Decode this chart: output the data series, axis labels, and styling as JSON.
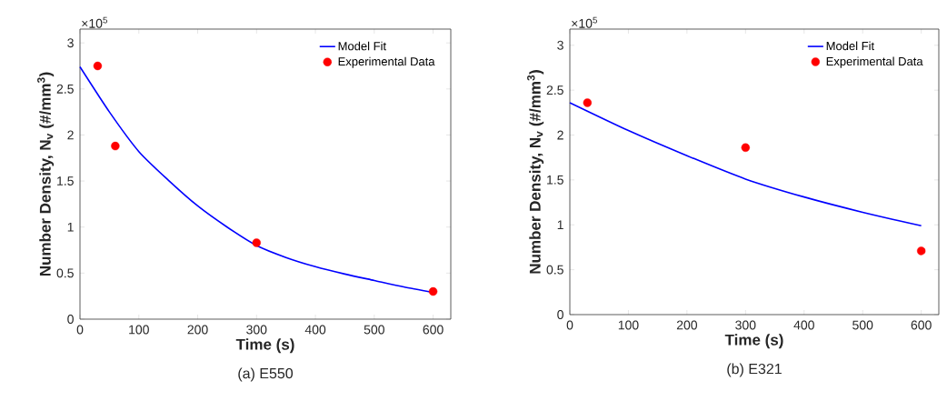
{
  "chart_data": [
    {
      "type": "line",
      "title": "(a) E550",
      "xlabel": "Time (s)",
      "ylabel": "Number Density, N$_{v}$ (#/mm$^{3}$)",
      "annotations": [
        "×10$^{5}$"
      ],
      "xlim": [
        0,
        630
      ],
      "ylim": [
        0,
        3.15
      ],
      "xticks": [
        0,
        100,
        200,
        300,
        400,
        500,
        600
      ],
      "yticks": [
        0,
        0.5,
        1,
        1.5,
        2,
        2.5,
        3
      ],
      "legend": "top right",
      "grid": false,
      "series": [
        {
          "name": "Model Fit",
          "color": "#0000ff",
          "line_style": "solid",
          "marker": "none",
          "x": [
            0,
            50,
            100,
            150,
            200,
            250,
            300,
            350,
            400,
            450,
            500,
            550,
            600
          ],
          "values": [
            2.74,
            2.25,
            1.82,
            1.51,
            1.23,
            1.0,
            0.8,
            0.67,
            0.57,
            0.49,
            0.42,
            0.35,
            0.29
          ]
        },
        {
          "name": "Experimental Data",
          "type": "scatter",
          "color": "#ff0000",
          "marker": "circle",
          "x": [
            30,
            60,
            300,
            600
          ],
          "values": [
            2.75,
            1.88,
            0.83,
            0.3
          ]
        }
      ]
    },
    {
      "type": "line",
      "title": "(b) E321",
      "xlabel": "Time (s)",
      "ylabel": "Number Density, N$_{v}$ (#/mm$^{3}$)",
      "annotations": [
        "×10$^{5}$"
      ],
      "xlim": [
        0,
        630
      ],
      "ylim": [
        0,
        3.18
      ],
      "xticks": [
        0,
        100,
        200,
        300,
        400,
        500,
        600
      ],
      "yticks": [
        0,
        0.5,
        1,
        1.5,
        2,
        2.5,
        3
      ],
      "legend": "top right",
      "grid": false,
      "series": [
        {
          "name": "Model Fit",
          "color": "#0000ff",
          "line_style": "solid",
          "marker": "none",
          "x": [
            0,
            100,
            200,
            300,
            400,
            500,
            600
          ],
          "values": [
            2.36,
            2.05,
            1.77,
            1.51,
            1.31,
            1.14,
            0.99
          ]
        },
        {
          "name": "Experimental Data",
          "type": "scatter",
          "color": "#ff0000",
          "marker": "circle",
          "x": [
            30,
            300,
            600
          ],
          "values": [
            2.36,
            1.86,
            0.71
          ]
        }
      ]
    }
  ]
}
